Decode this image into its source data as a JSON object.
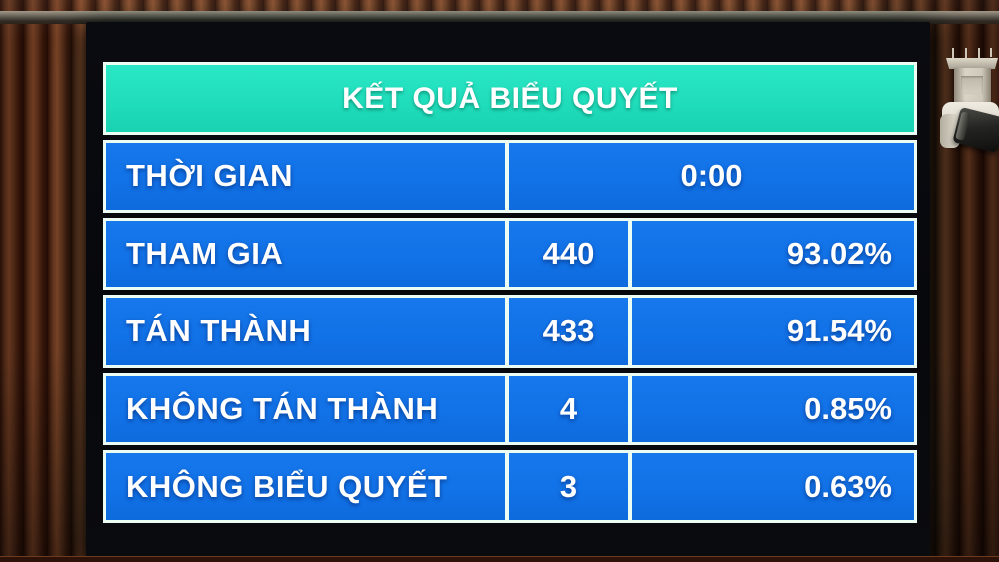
{
  "board": {
    "title": "KẾT QUẢ BIỂU QUYẾT",
    "rows": [
      {
        "label": "THỜI GIAN",
        "value": "0:00"
      },
      {
        "label": "THAM GIA",
        "count": "440",
        "percent": "93.02%"
      },
      {
        "label": "TÁN THÀNH",
        "count": "433",
        "percent": "91.54%"
      },
      {
        "label": "KHÔNG TÁN THÀNH",
        "count": "4",
        "percent": "0.85%"
      },
      {
        "label": "KHÔNG BIỂU QUYẾT",
        "count": "3",
        "percent": "0.63%"
      }
    ],
    "colors": {
      "header_bg": "#1fdcba",
      "row_bg": "#1171e6",
      "border": "#ecfdf3",
      "text": "#ffffff",
      "bezel": "#08090d"
    }
  }
}
